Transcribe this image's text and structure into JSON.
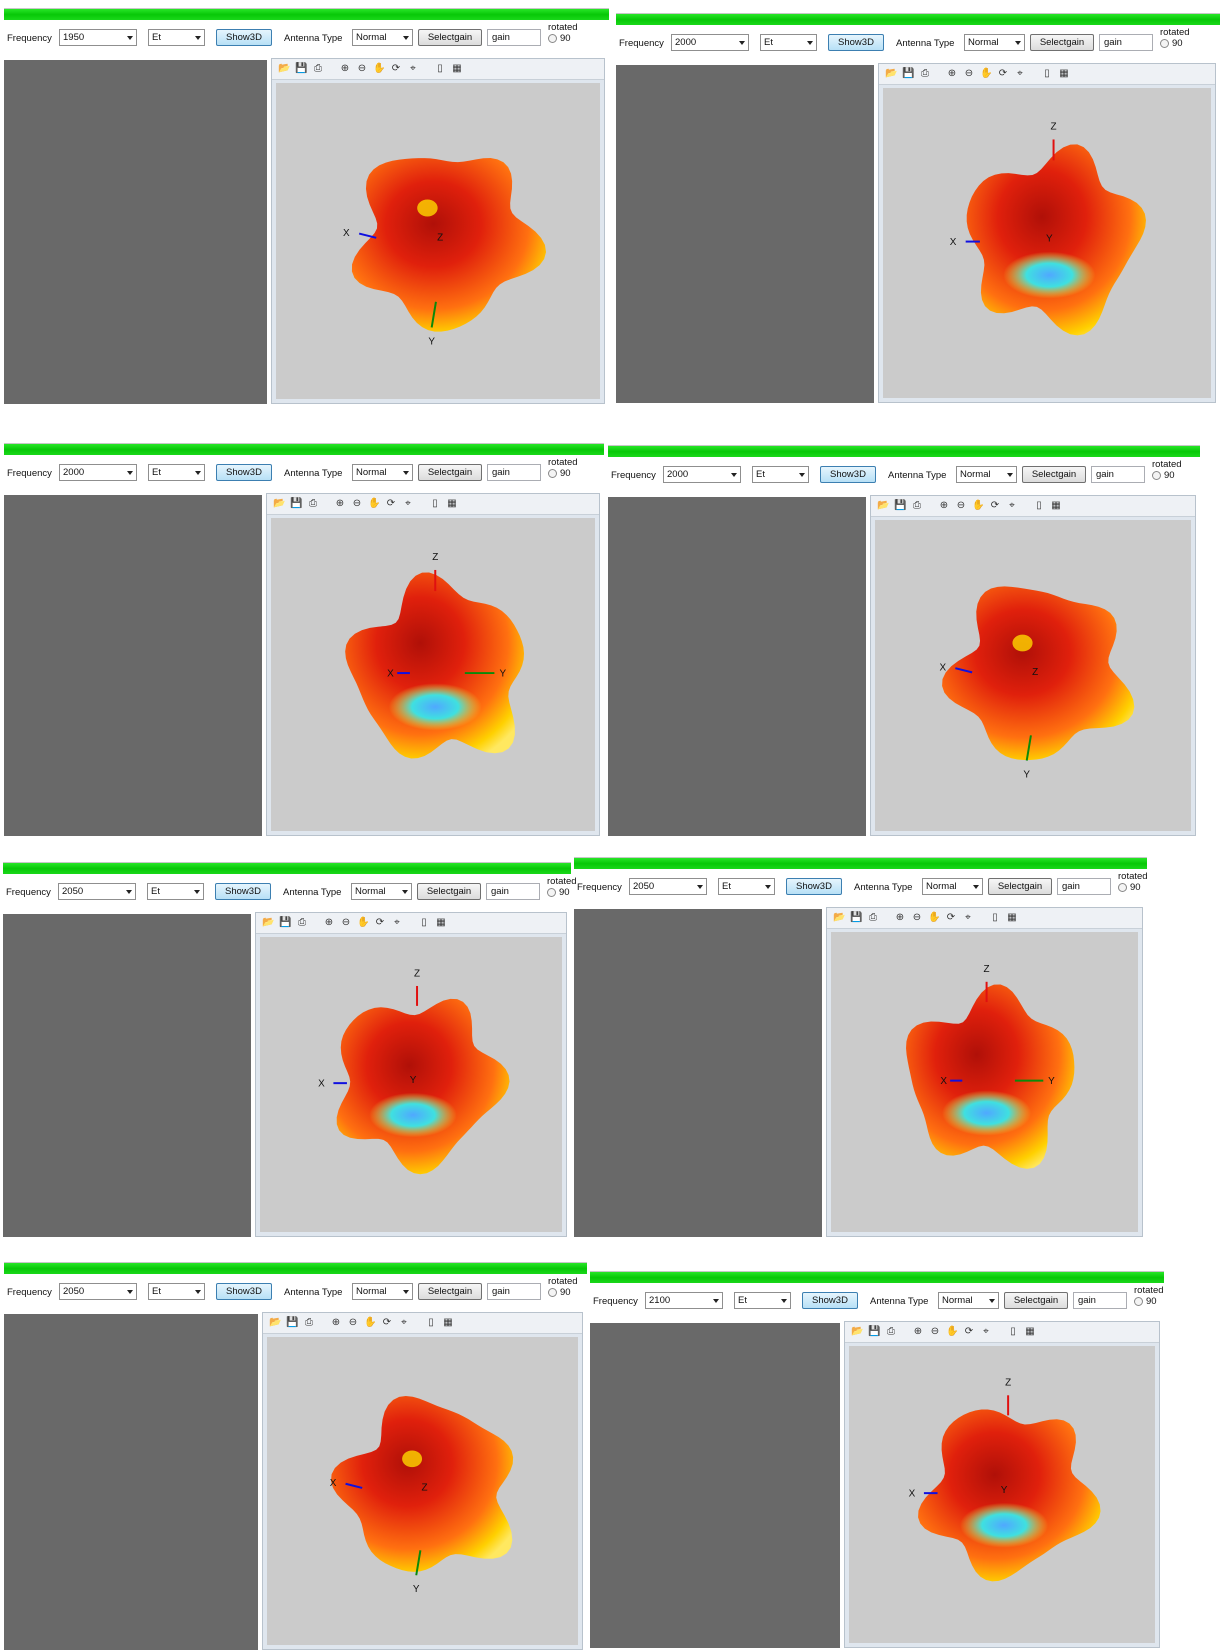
{
  "labels": {
    "frequency": "Frequency",
    "antenna_type": "Antenna Type",
    "show3d": "Show3D",
    "selectgain": "Selectgain",
    "gain": "gain",
    "rotated": "rotated",
    "ninety": "90"
  },
  "panels": [
    {
      "frequency": "1950",
      "component": "Et",
      "antenna_type": "Normal",
      "view": "top",
      "axes": [
        "X",
        "Z",
        "Y"
      ]
    },
    {
      "frequency": "2000",
      "component": "Et",
      "antenna_type": "Normal",
      "view": "front",
      "axes": [
        "Z",
        "X",
        "Y"
      ]
    },
    {
      "frequency": "2000",
      "component": "Et",
      "antenna_type": "Normal",
      "view": "side",
      "axes": [
        "Z",
        "X",
        "Y"
      ]
    },
    {
      "frequency": "2000",
      "component": "Et",
      "antenna_type": "Normal",
      "view": "top",
      "axes": [
        "X",
        "Z",
        "Y"
      ]
    },
    {
      "frequency": "2050",
      "component": "Et",
      "antenna_type": "Normal",
      "view": "front",
      "axes": [
        "Z",
        "X",
        "Y"
      ]
    },
    {
      "frequency": "2050",
      "component": "Et",
      "antenna_type": "Normal",
      "view": "side",
      "axes": [
        "Z",
        "X",
        "Y"
      ]
    },
    {
      "frequency": "2050",
      "component": "Et",
      "antenna_type": "Normal",
      "view": "top",
      "axes": [
        "X",
        "Z",
        "Y"
      ]
    },
    {
      "frequency": "2100",
      "component": "Et",
      "antenna_type": "Normal",
      "view": "front",
      "axes": [
        "Z",
        "X",
        "Y"
      ]
    }
  ],
  "icons": [
    "open-icon",
    "save-icon",
    "print-icon",
    "zoom-in-icon",
    "zoom-out-icon",
    "pan-icon",
    "rotate3d-icon",
    "datacursor-icon",
    "colorbar-icon",
    "legend-icon"
  ],
  "colors": {
    "progress": "#18d418",
    "pattern_hot": "#e0200c",
    "pattern_mid": "#ffd000",
    "pattern_cold": "#3fe0e0",
    "axis_x": "#1010e0",
    "axis_y": "#0a8a0a",
    "axis_z": "#e01010"
  }
}
